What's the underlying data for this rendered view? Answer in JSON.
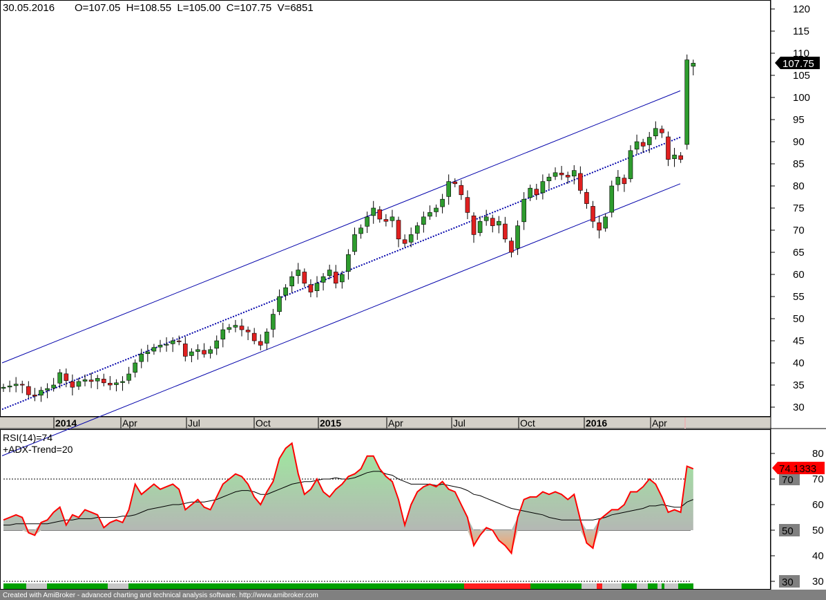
{
  "header": {
    "date": "30.05.2016",
    "ohlcv": "O=107.05  H=108.55  L=105.00  C=107.75  V=6851"
  },
  "price_panel": {
    "last_price_label": "107.75",
    "y_ticks": [
      "120",
      "115",
      "110",
      "105",
      "100",
      "95",
      "90",
      "85",
      "80",
      "75",
      "70",
      "65",
      "60",
      "55",
      "50",
      "45",
      "40",
      "35",
      "30"
    ],
    "x_labels": [
      "2014",
      "Apr",
      "Jul",
      "Oct",
      "2015",
      "Apr",
      "Jul",
      "Oct",
      "2016",
      "Apr"
    ]
  },
  "rsi_panel": {
    "title": "RSI(14)=74",
    "subtitle": "+ADX-Trend=20",
    "value_label": "74.1333",
    "y_ticks": [
      "80",
      "70",
      "60",
      "50",
      "40",
      "30"
    ],
    "level_labels": [
      "70",
      "50",
      "30"
    ]
  },
  "footer": {
    "credit": "Created with AmiBroker - advanced charting and technical analysis software. http://www.amibroker.com"
  },
  "colors": {
    "up_candle": "#2e9c2e",
    "down_candle": "#e02020",
    "channel": "#0000aa",
    "rsi_line": "#ff0000",
    "rsi_fill": "#a6dea6",
    "adx_up": "#00a000",
    "adx_down": "#ff0000",
    "adx_neutral": "#c8c8c8"
  },
  "chart_data": [
    {
      "type": "candlestick",
      "title": "",
      "ylim": [
        27,
        122
      ],
      "start_week": "2013-09-30",
      "interval": "weekly",
      "close": [
        34.5,
        34.8,
        35.2,
        35.0,
        32.8,
        32.5,
        33.8,
        34.2,
        35.0,
        37.8,
        36.0,
        34.5,
        35.8,
        36.2,
        35.8,
        36.5,
        35.5,
        35.0,
        35.5,
        35.8,
        37.5,
        40.0,
        42.0,
        42.5,
        43.5,
        44.0,
        44.2,
        45.0,
        44.8,
        41.5,
        42.5,
        43.0,
        42.0,
        43.0,
        45.0,
        47.5,
        48.0,
        48.5,
        47.5,
        47.0,
        45.0,
        44.0,
        47.0,
        51.0,
        55.0,
        57.0,
        59.5,
        61.0,
        58.0,
        56.0,
        58.0,
        59.5,
        61.0,
        58.0,
        60.0,
        64.5,
        69.0,
        70.5,
        73.0,
        75.0,
        72.5,
        72.0,
        73.0,
        68.0,
        67.0,
        69.0,
        71.0,
        73.0,
        74.0,
        75.0,
        77.0,
        81.0,
        80.5,
        78.0,
        74.0,
        69.0,
        72.0,
        73.0,
        71.0,
        72.0,
        68.0,
        65.0,
        71.0,
        77.0,
        79.5,
        78.0,
        81.0,
        82.0,
        83.0,
        82.5,
        82.0,
        83.5,
        79.0,
        76.0,
        72.0,
        70.0,
        73.0,
        80.0,
        82.0,
        80.5,
        88.0,
        90.0,
        89.0,
        91.0,
        93.0,
        92.0,
        86.0,
        87.0,
        86.0,
        108.5,
        107.75
      ],
      "ylabel": "",
      "xlabel": ""
    },
    {
      "type": "line",
      "title": "RSI(14)=74",
      "ylim": [
        28,
        86
      ],
      "levels": [
        70,
        50,
        30
      ],
      "series": [
        {
          "name": "RSI(14)",
          "values": [
            54,
            55,
            56,
            55,
            49,
            48,
            53,
            54,
            57,
            59,
            52,
            56,
            55,
            58,
            57,
            56,
            51,
            53,
            54,
            53,
            58,
            68,
            64,
            66,
            68,
            66,
            67,
            68,
            66,
            58,
            60,
            62,
            59,
            58,
            63,
            68,
            70,
            72,
            71,
            68,
            63,
            60,
            65,
            69,
            78,
            82,
            84,
            72,
            64,
            66,
            70,
            65,
            63,
            66,
            68,
            71,
            72,
            74,
            79,
            79,
            74,
            71,
            69,
            62,
            52,
            60,
            65,
            67,
            68,
            67,
            69,
            66,
            65,
            60,
            55,
            44,
            48,
            51,
            50,
            46,
            44,
            41,
            55,
            62,
            63,
            63,
            65,
            64,
            65,
            64,
            62,
            64,
            54,
            45,
            43,
            54,
            56,
            58,
            58,
            60,
            65,
            65,
            67,
            70,
            68,
            63,
            57,
            58,
            57,
            75,
            74
          ]
        },
        {
          "name": "ADX-Trend",
          "values": [
            52,
            52,
            52.5,
            52.5,
            52.5,
            52.5,
            52.5,
            52.5,
            53,
            53.5,
            54,
            54,
            54.5,
            54.5,
            54.5,
            55,
            55,
            55,
            55,
            55.5,
            55.5,
            56,
            57,
            58,
            58.5,
            59,
            59.5,
            60,
            60,
            60.5,
            61,
            61,
            61,
            61.5,
            62,
            63,
            64,
            65,
            65.5,
            65.5,
            65,
            64,
            64,
            65,
            66,
            67,
            68,
            68.5,
            69,
            69,
            69.5,
            70,
            70,
            70.5,
            70,
            70,
            70.5,
            71.5,
            72.5,
            73,
            73,
            72,
            71.5,
            70,
            69,
            68,
            68,
            68,
            68,
            67.5,
            68,
            67.5,
            67,
            66.5,
            65.5,
            64,
            63.5,
            62.5,
            61.5,
            60.5,
            59.5,
            58.5,
            58,
            57.5,
            57,
            56.5,
            56,
            55,
            54.5,
            54,
            54,
            54,
            54,
            54,
            54,
            54.5,
            55,
            56,
            56.5,
            57,
            57.5,
            58,
            58.5,
            59.5,
            59.5,
            60,
            59.5,
            59,
            59,
            61,
            62
          ]
        }
      ]
    }
  ]
}
